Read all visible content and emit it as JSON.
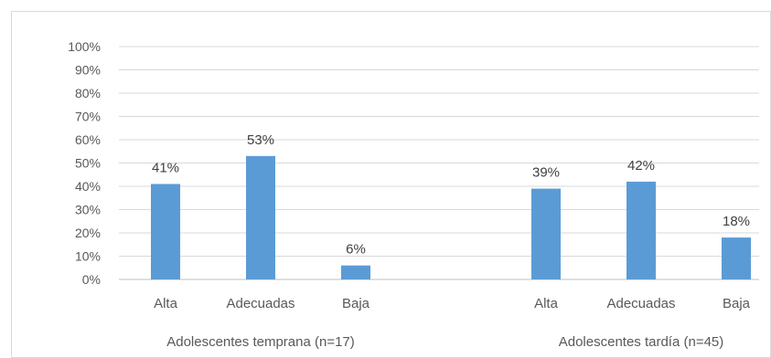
{
  "chart_data": {
    "type": "bar",
    "yticks": [
      "0%",
      "10%",
      "20%",
      "30%",
      "40%",
      "50%",
      "60%",
      "70%",
      "80%",
      "90%",
      "100%"
    ],
    "ylim": [
      0,
      100
    ],
    "grid": true,
    "bar_color": "#5b9bd5",
    "groups": [
      {
        "name": "Adolescentes temprana (n=17)",
        "categories": [
          "Alta",
          "Adecuadas",
          "Baja"
        ],
        "values": [
          41,
          53,
          6
        ],
        "labels": [
          "41%",
          "53%",
          "6%"
        ]
      },
      {
        "name": "Adolescentes tardía (n=45)",
        "categories": [
          "Alta",
          "Adecuadas",
          "Baja"
        ],
        "values": [
          39,
          42,
          18
        ],
        "labels": [
          "39%",
          "42%",
          "18%"
        ]
      }
    ]
  }
}
